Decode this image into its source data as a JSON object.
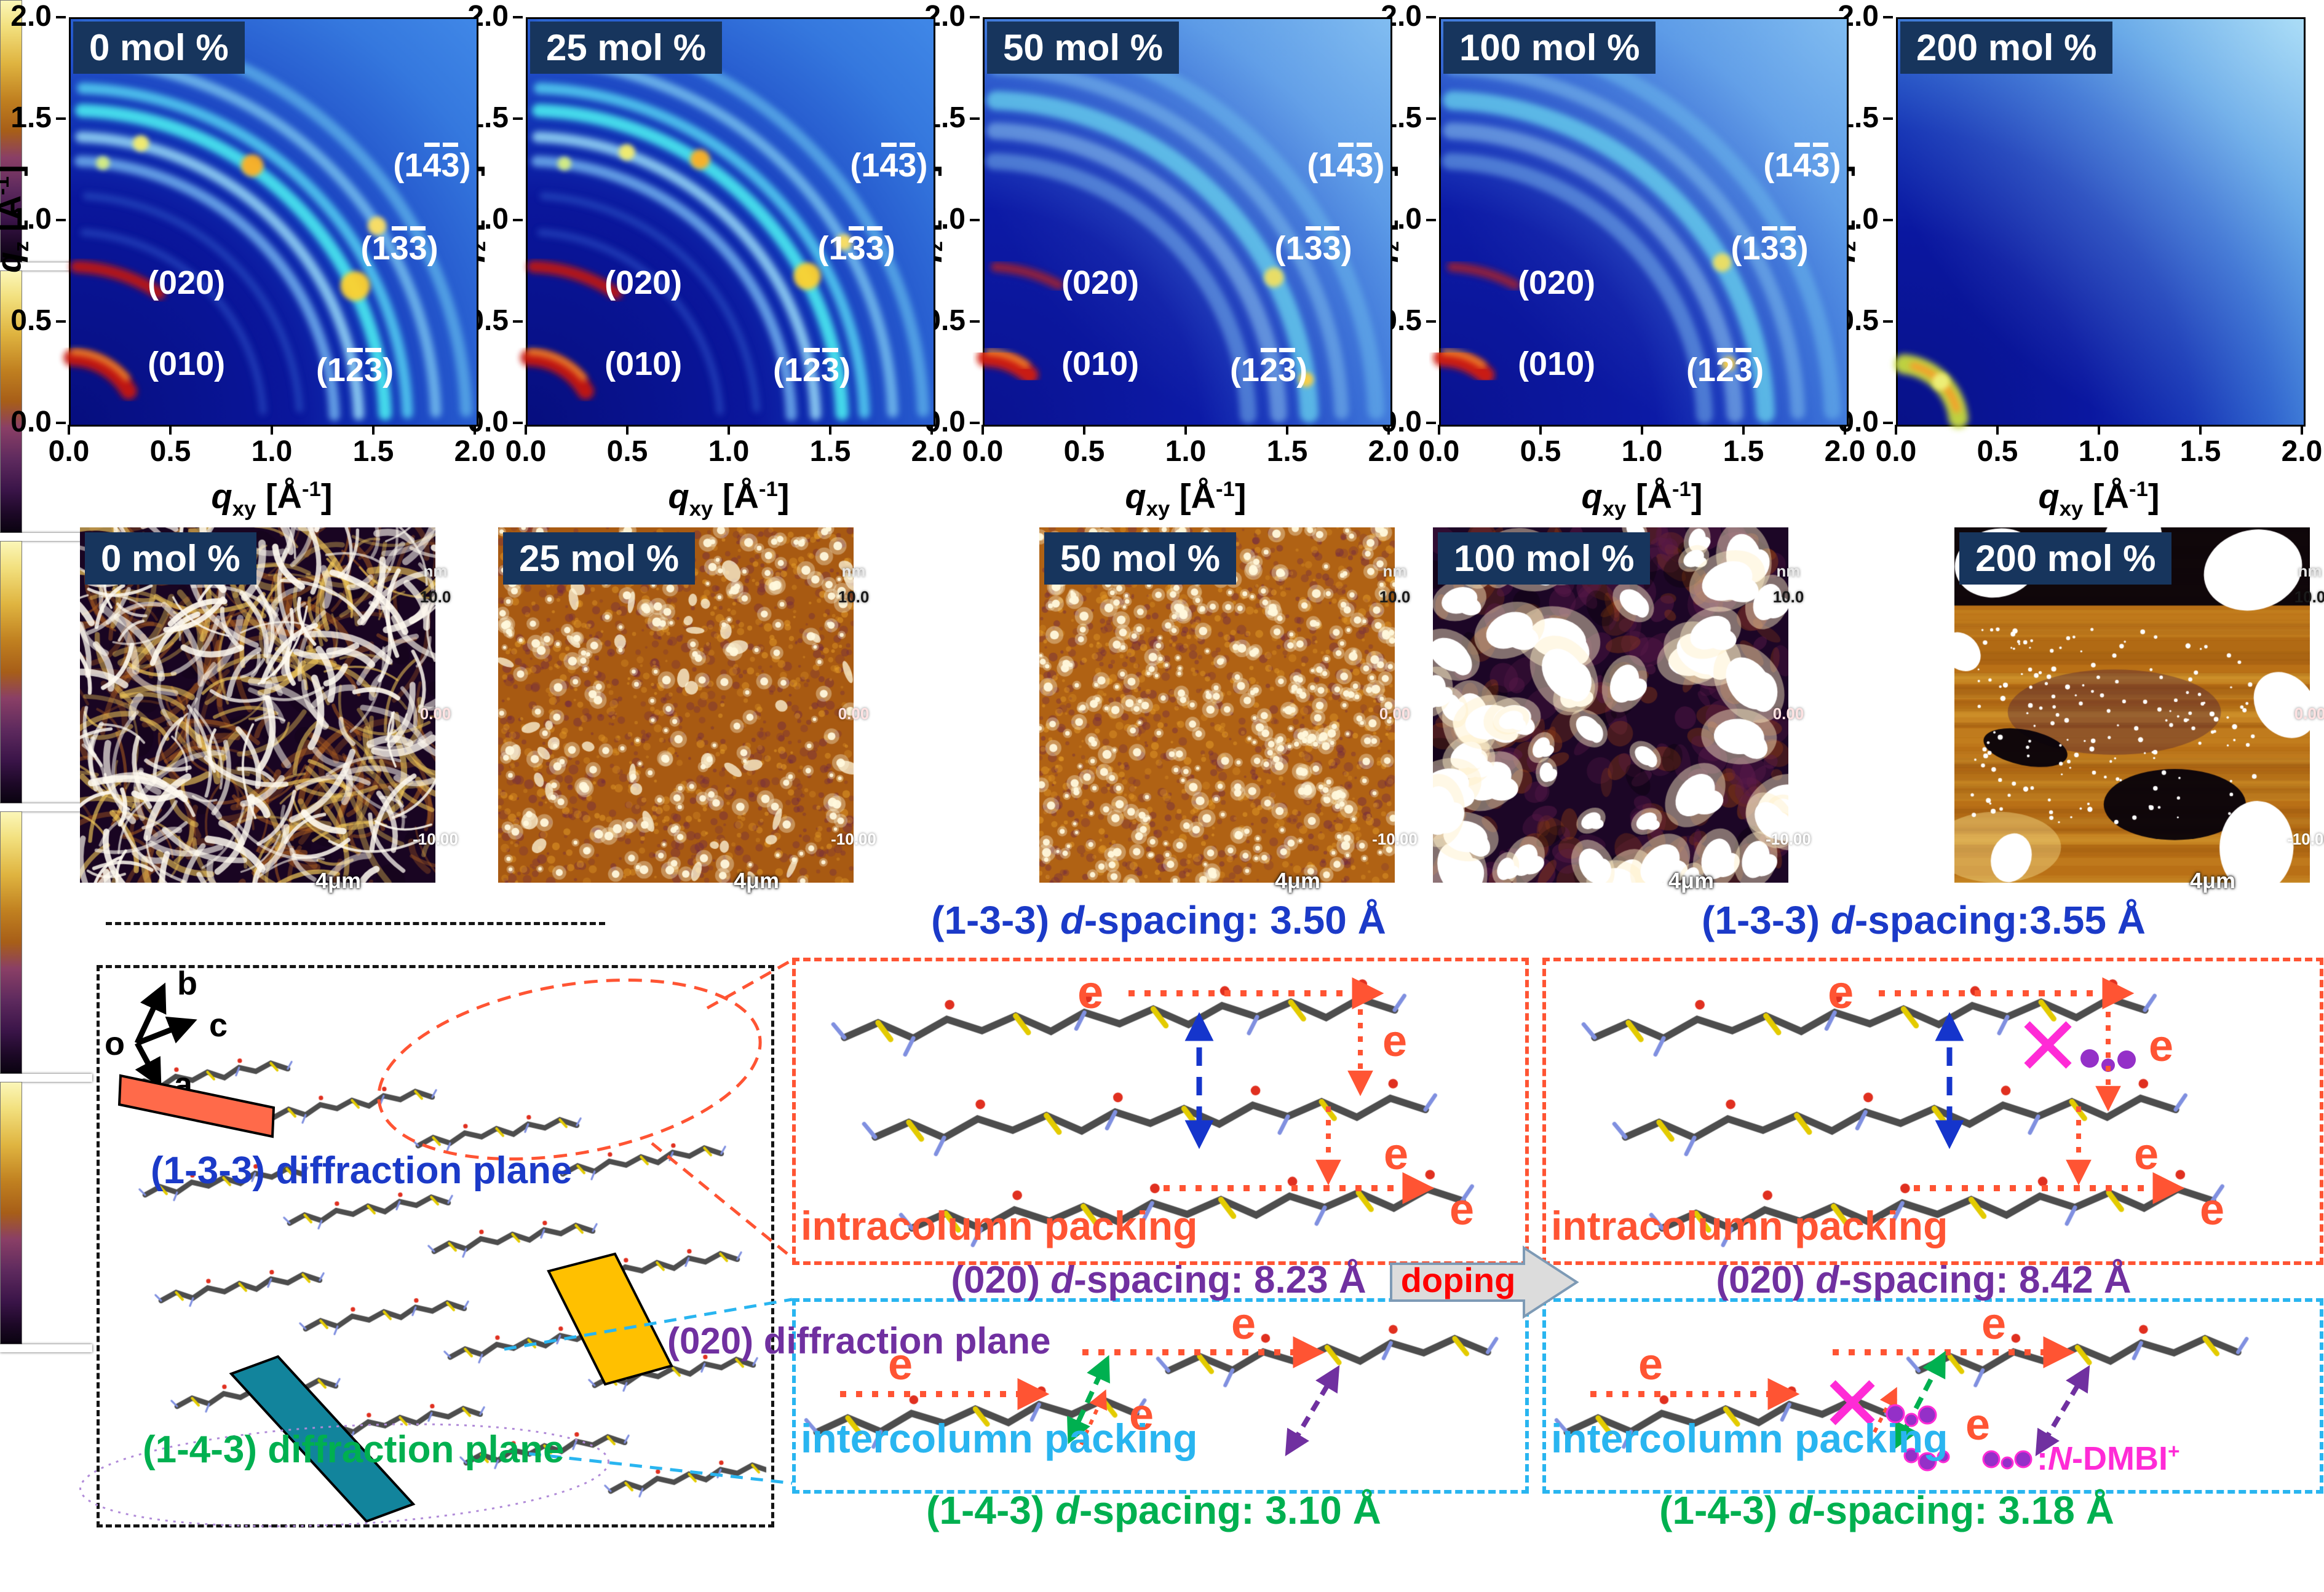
{
  "colors": {
    "chip_bg": "#17355d",
    "chip_text": "#ffffff",
    "axis_text": "#000000",
    "peak_text": "#ffffff",
    "blue": "#1b3ac8",
    "purple": "#7030a0",
    "green": "#00b050",
    "orange": "#ff5433",
    "cyan": "#29b5f0",
    "magenta": "#ff2bd6",
    "red": "#ff0000",
    "dot_purple": "#9430c8",
    "plane_133_fill": "#ff6a4a",
    "plane_143_fill": "#12849c",
    "plane_020_fill": "#ffc000",
    "mol_backbone": "#4d4d4d",
    "mol_sulfur": "#e3cb00",
    "mol_oxygen": "#e03020",
    "mol_nitrogen": "#8090e0",
    "doping_arrow_fill": "#dcdcdc",
    "doping_arrow_stroke": "#7d9ab5",
    "box_black": "#141414"
  },
  "giwaxs": {
    "x_ticks": [
      "0.0",
      "0.5",
      "1.0",
      "1.5",
      "2.0"
    ],
    "y_ticks": [
      "0.0",
      "0.5",
      "1.0",
      "1.5",
      "2.0"
    ],
    "axis_range": [
      0.0,
      2.0
    ],
    "x_axis": {
      "sym": "q",
      "sub": "xy",
      "unit_pre": " [Å",
      "unit_sup": "-1",
      "unit_post": "]"
    },
    "y_axis": {
      "sym": "q",
      "sub": "z",
      "unit_pre": " [Å",
      "unit_sup": "-1",
      "unit_post": "]"
    },
    "peaks": [
      {
        "name": "(020)",
        "qx": 0.57,
        "qz": 0.7,
        "segs": [
          {
            "t": "(020)",
            "bar": false
          }
        ]
      },
      {
        "name": "(010)",
        "qx": 0.57,
        "qz": 0.3,
        "segs": [
          {
            "t": "(010)",
            "bar": false
          }
        ]
      },
      {
        "name": "(1-2-3)",
        "qx": 1.4,
        "qz": 0.27,
        "segs": [
          {
            "t": "(1",
            "bar": false
          },
          {
            "t": "2",
            "bar": true
          },
          {
            "t": "3",
            "bar": true
          },
          {
            "t": ")",
            "bar": false
          }
        ]
      },
      {
        "name": "(1-3-3)",
        "qx": 1.62,
        "qz": 0.87,
        "segs": [
          {
            "t": "(1",
            "bar": false
          },
          {
            "t": "3",
            "bar": true
          },
          {
            "t": "3",
            "bar": true
          },
          {
            "t": ")",
            "bar": false
          }
        ]
      },
      {
        "name": "(1-4-3)",
        "qx": 1.78,
        "qz": 1.28,
        "segs": [
          {
            "t": "(1",
            "bar": false
          },
          {
            "t": "4",
            "bar": true
          },
          {
            "t": "3",
            "bar": true
          },
          {
            "t": ")",
            "bar": false
          }
        ]
      }
    ],
    "panels": [
      {
        "label": "0 mol %",
        "style": "sharp",
        "show_peaks": true,
        "rings": [
          {
            "q": 0.33,
            "w": 15,
            "c": "#c81208",
            "a": [
              30,
              89
            ],
            "o": 0.95
          },
          {
            "q": 0.36,
            "w": 6,
            "c": "#ff9828",
            "a": [
              40,
              88
            ],
            "o": 0.8
          },
          {
            "q": 0.78,
            "w": 11,
            "c": "#c41810",
            "a": [
              56,
              88
            ],
            "o": 0.9
          },
          {
            "q": 0.95,
            "w": 7,
            "c": "#2d54c8",
            "a": [
              4,
              86
            ],
            "o": 0.55
          },
          {
            "q": 1.13,
            "w": 7,
            "c": "#3260cc",
            "a": [
              4,
              86
            ],
            "o": 0.5
          },
          {
            "q": 1.3,
            "w": 10,
            "c": "#6fb0ee",
            "a": [
              2,
              88
            ],
            "o": 0.85
          },
          {
            "q": 1.42,
            "w": 10,
            "c": "#8fd0f4",
            "a": [
              2,
              88
            ],
            "o": 0.9
          },
          {
            "q": 1.55,
            "w": 12,
            "c": "#46e2ee",
            "a": [
              2,
              88
            ],
            "o": 0.95
          },
          {
            "q": 1.66,
            "w": 10,
            "c": "#52d0f2",
            "a": [
              2,
              88
            ],
            "o": 0.85
          },
          {
            "q": 1.8,
            "w": 10,
            "c": "#78c4f0",
            "a": [
              2,
              88
            ],
            "o": 0.8
          },
          {
            "q": 1.95,
            "w": 11,
            "c": "#62baec",
            "a": [
              2,
              88
            ],
            "o": 0.7
          }
        ],
        "spots": [
          {
            "q": 1.56,
            "ang": 26,
            "r": 24,
            "c": "#ffd22e"
          },
          {
            "q": 1.56,
            "ang": 55,
            "r": 18,
            "c": "#ffb020"
          },
          {
            "q": 1.8,
            "ang": 33,
            "r": 15,
            "c": "#ffe060"
          },
          {
            "q": 1.43,
            "ang": 76,
            "r": 13,
            "c": "#f6ee6a"
          },
          {
            "q": 1.3,
            "ang": 83,
            "r": 11,
            "c": "#d8f080"
          }
        ]
      },
      {
        "label": "25 mol %",
        "style": "sharp",
        "show_peaks": true,
        "rings": [
          {
            "q": 0.33,
            "w": 15,
            "c": "#c81208",
            "a": [
              30,
              89
            ],
            "o": 0.95
          },
          {
            "q": 0.36,
            "w": 6,
            "c": "#ff9828",
            "a": [
              40,
              88
            ],
            "o": 0.8
          },
          {
            "q": 0.78,
            "w": 11,
            "c": "#c41810",
            "a": [
              56,
              88
            ],
            "o": 0.9
          },
          {
            "q": 0.95,
            "w": 7,
            "c": "#2d54c8",
            "a": [
              4,
              86
            ],
            "o": 0.55
          },
          {
            "q": 1.13,
            "w": 7,
            "c": "#3260cc",
            "a": [
              4,
              86
            ],
            "o": 0.5
          },
          {
            "q": 1.3,
            "w": 10,
            "c": "#6fb0ee",
            "a": [
              2,
              88
            ],
            "o": 0.85
          },
          {
            "q": 1.42,
            "w": 10,
            "c": "#8fd0f4",
            "a": [
              2,
              88
            ],
            "o": 0.9
          },
          {
            "q": 1.55,
            "w": 12,
            "c": "#46e2ee",
            "a": [
              2,
              88
            ],
            "o": 0.95
          },
          {
            "q": 1.66,
            "w": 10,
            "c": "#52d0f2",
            "a": [
              2,
              88
            ],
            "o": 0.85
          },
          {
            "q": 1.8,
            "w": 10,
            "c": "#78c4f0",
            "a": [
              2,
              88
            ],
            "o": 0.8
          },
          {
            "q": 1.95,
            "w": 11,
            "c": "#62baec",
            "a": [
              2,
              88
            ],
            "o": 0.7
          }
        ],
        "spots": [
          {
            "q": 1.56,
            "ang": 28,
            "r": 22,
            "c": "#ffd22e"
          },
          {
            "q": 1.56,
            "ang": 57,
            "r": 16,
            "c": "#ffb020"
          },
          {
            "q": 1.43,
            "ang": 70,
            "r": 13,
            "c": "#f6ee6a"
          },
          {
            "q": 1.3,
            "ang": 82,
            "r": 11,
            "c": "#d8f080"
          },
          {
            "q": 1.8,
            "ang": 30,
            "r": 13,
            "c": "#ffe060"
          }
        ]
      },
      {
        "label": "50 mol %",
        "style": "diffuse",
        "show_peaks": true,
        "rings": [
          {
            "q": 0.33,
            "w": 16,
            "c": "#d41a0c",
            "a": [
              48,
              89
            ],
            "o": 0.95
          },
          {
            "q": 0.36,
            "w": 6,
            "c": "#ff9828",
            "a": [
              55,
              87
            ],
            "o": 0.8
          },
          {
            "q": 0.78,
            "w": 9,
            "c": "#b8201a",
            "a": [
              62,
              86
            ],
            "o": 0.75
          },
          {
            "q": 1.3,
            "w": 15,
            "c": "#7fc0f0",
            "a": [
              2,
              88
            ],
            "o": 0.5
          },
          {
            "q": 1.45,
            "w": 15,
            "c": "#92ccf2",
            "a": [
              2,
              88
            ],
            "o": 0.55
          },
          {
            "q": 1.6,
            "w": 17,
            "c": "#6ee0f2",
            "a": [
              2,
              88
            ],
            "o": 0.7
          },
          {
            "q": 1.76,
            "w": 13,
            "c": "#84c8f0",
            "a": [
              2,
              88
            ],
            "o": 0.5
          },
          {
            "q": 1.93,
            "w": 15,
            "c": "#6fc0ee",
            "a": [
              2,
              88
            ],
            "o": 0.5
          }
        ],
        "spots": [
          {
            "q": 1.6,
            "ang": 27,
            "r": 16,
            "c": "#f0e060"
          },
          {
            "q": 1.6,
            "ang": 8,
            "r": 12,
            "c": "#ffd040"
          }
        ]
      },
      {
        "label": "100 mol %",
        "style": "diffuse",
        "show_peaks": true,
        "rings": [
          {
            "q": 0.33,
            "w": 16,
            "c": "#d41a0c",
            "a": [
              48,
              89
            ],
            "o": 0.95
          },
          {
            "q": 0.36,
            "w": 6,
            "c": "#ff9828",
            "a": [
              55,
              87
            ],
            "o": 0.8
          },
          {
            "q": 0.78,
            "w": 9,
            "c": "#b8201a",
            "a": [
              62,
              86
            ],
            "o": 0.75
          },
          {
            "q": 1.3,
            "w": 15,
            "c": "#7fc0f0",
            "a": [
              2,
              88
            ],
            "o": 0.5
          },
          {
            "q": 1.45,
            "w": 15,
            "c": "#92ccf2",
            "a": [
              2,
              88
            ],
            "o": 0.55
          },
          {
            "q": 1.6,
            "w": 17,
            "c": "#6ee0f2",
            "a": [
              2,
              88
            ],
            "o": 0.7
          },
          {
            "q": 1.76,
            "w": 13,
            "c": "#84c8f0",
            "a": [
              2,
              88
            ],
            "o": 0.5
          },
          {
            "q": 1.93,
            "w": 15,
            "c": "#6fc0ee",
            "a": [
              2,
              88
            ],
            "o": 0.5
          }
        ],
        "spots": [
          {
            "q": 1.6,
            "ang": 30,
            "r": 15,
            "c": "#f0e060"
          },
          {
            "q": 1.45,
            "ang": 12,
            "r": 11,
            "c": "#ffd040"
          }
        ]
      },
      {
        "label": "200 mol %",
        "style": "amorphous",
        "show_peaks": false,
        "rings": [
          {
            "q": 0.3,
            "w": 18,
            "c": "#c8dc3c",
            "a": [
              6,
              84
            ],
            "o": 0.95
          },
          {
            "q": 0.3,
            "w": 7,
            "c": "#ff9828",
            "a": [
              15,
              75
            ],
            "o": 0.85
          }
        ],
        "spots": [
          {
            "q": 0.3,
            "ang": 45,
            "r": 14,
            "c": "#eef27a"
          }
        ]
      }
    ]
  },
  "afm": {
    "colorbar": {
      "unit": "nm",
      "max": "10.0",
      "mid": "0.00",
      "min": "-10.00"
    },
    "scalebar_label": "4μm",
    "panels": [
      {
        "label": "0 mol %",
        "texture": "fibers",
        "palette": {
          "bg": "#190522",
          "f1": "#fffaf0",
          "f2": "#f0c85a",
          "f3": "#b06020",
          "shadow": "#2a0a30"
        }
      },
      {
        "label": "25 mol %",
        "texture": "grains",
        "bright_dots": 240,
        "blobs": 46,
        "palette": {
          "bg": "#a85a12",
          "dark": "#6a2248",
          "mid": "#e8a02a",
          "bright": "#fff8dc"
        }
      },
      {
        "label": "50 mol %",
        "texture": "grains",
        "bright_dots": 430,
        "blobs": 0,
        "palette": {
          "bg": "#b06214",
          "dark": "#6a2248",
          "mid": "#e8a02a",
          "bright": "#fff8dc"
        }
      },
      {
        "label": "100 mol %",
        "texture": "blobs",
        "palette": {
          "bg": "#1c0626",
          "white": "#ffffff",
          "patch1": "#8a3a16",
          "patch2": "#5a1a4a"
        }
      },
      {
        "label": "200 mol %",
        "texture": "terrace",
        "palette": {
          "bg": "#b97016",
          "black": "#060109",
          "white": "#ffffff",
          "band1": "#7a3c08",
          "band2": "#eec24a"
        }
      }
    ]
  },
  "packing": {
    "left": {
      "axes": {
        "o": "o",
        "a": "a",
        "b": "b",
        "c": "c"
      },
      "plane_133_label": "(1-3-3) diffraction plane",
      "plane_143_label": "(1-4-3) diffraction plane",
      "plane_020_label": "(020) diffraction plane"
    },
    "doping_label": "doping",
    "e_label": "e",
    "pristine": {
      "title_133": {
        "pre": "(1-3-3) ",
        "d": "d",
        "post": "-spacing: 3.50 Å"
      },
      "title_020": {
        "pre": "(020) ",
        "d": "d",
        "post": "-spacing: 8.23 Å"
      },
      "title_143": {
        "pre": "(1-4-3) ",
        "d": "d",
        "post": "-spacing: 3.10 Å"
      },
      "intracolumn_label": "intracolumn packing",
      "intercolumn_label": "intercolumn packing"
    },
    "doped": {
      "title_133": {
        "pre": "(1-3-3) ",
        "d": "d",
        "post": "-spacing:3.55 Å"
      },
      "title_020": {
        "pre": "(020) ",
        "d": "d",
        "post": "-spacing: 8.42 Å"
      },
      "title_143": {
        "pre": "(1-4-3) ",
        "d": "d",
        "post": "-spacing: 3.18 Å"
      },
      "intracolumn_label": "intracolumn packing",
      "intercolumn_label": "intercolumn packing",
      "legend": {
        "colon": ":",
        "n": "N",
        "rest": "-DMBI",
        "sup": "+"
      }
    }
  }
}
